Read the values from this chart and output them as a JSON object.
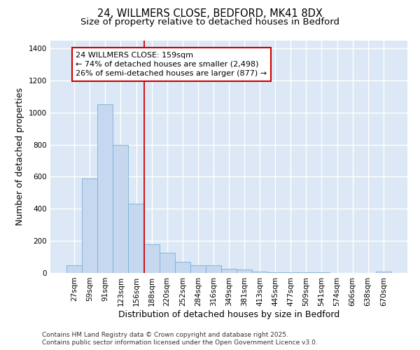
{
  "title_line1": "24, WILLMERS CLOSE, BEDFORD, MK41 8DX",
  "title_line2": "Size of property relative to detached houses in Bedford",
  "xlabel": "Distribution of detached houses by size in Bedford",
  "ylabel": "Number of detached properties",
  "categories": [
    "27sqm",
    "59sqm",
    "91sqm",
    "123sqm",
    "156sqm",
    "188sqm",
    "220sqm",
    "252sqm",
    "284sqm",
    "316sqm",
    "349sqm",
    "381sqm",
    "413sqm",
    "445sqm",
    "477sqm",
    "509sqm",
    "541sqm",
    "574sqm",
    "606sqm",
    "638sqm",
    "670sqm"
  ],
  "values": [
    50,
    590,
    1050,
    800,
    430,
    180,
    125,
    70,
    50,
    50,
    25,
    20,
    10,
    5,
    5,
    3,
    3,
    2,
    2,
    2,
    8
  ],
  "bar_color": "#c5d8f0",
  "bar_edge_color": "#7aafd4",
  "bg_color": "#dce8f5",
  "grid_color": "#ffffff",
  "vline_index": 4,
  "vline_color": "#cc0000",
  "annotation_text": "24 WILLMERS CLOSE: 159sqm\n← 74% of detached houses are smaller (2,498)\n26% of semi-detached houses are larger (877) →",
  "annotation_box_color": "#cc0000",
  "ylim": [
    0,
    1450
  ],
  "yticks": [
    0,
    200,
    400,
    600,
    800,
    1000,
    1200,
    1400
  ],
  "footer_line1": "Contains HM Land Registry data © Crown copyright and database right 2025.",
  "footer_line2": "Contains public sector information licensed under the Open Government Licence v3.0.",
  "title_fontsize": 10.5,
  "subtitle_fontsize": 9.5,
  "axis_label_fontsize": 9,
  "tick_fontsize": 7.5,
  "annotation_fontsize": 8,
  "footer_fontsize": 6.5
}
